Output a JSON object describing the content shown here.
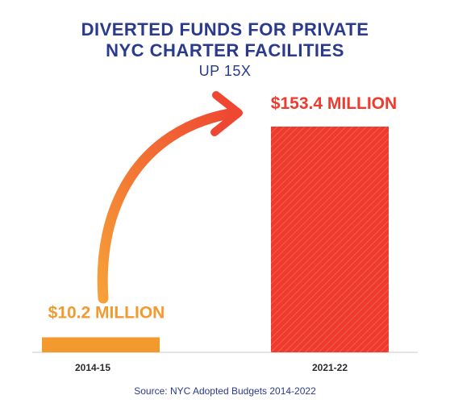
{
  "header": {
    "title_line1": "DIVERTED FUNDS FOR PRIVATE",
    "title_line2": "NYC CHARTER FACILITIES",
    "subtitle": "UP 15X"
  },
  "footer": {
    "source": "Source: NYC Adopted Budgets 2014-2022"
  },
  "colors": {
    "title": "#2a3a8c",
    "bar_2014": "#f39a2f",
    "bar_2022": "#ef3a2d",
    "arrow_start": "#f6a037",
    "arrow_end": "#ef4732",
    "axis": "#c9c9c9"
  },
  "chart_data": {
    "type": "bar",
    "title": "DIVERTED FUNDS FOR PRIVATE NYC CHARTER FACILITIES",
    "subtitle": "UP 15X",
    "categories": [
      "2014-15",
      "2021-22"
    ],
    "values": [
      10.2,
      153.4
    ],
    "data_labels": [
      "$10.2 MILLION",
      "$153.4 MILLION"
    ],
    "ylim": [
      0,
      160
    ],
    "grid": false,
    "xlabel": "",
    "ylabel": "",
    "annotation": "arrow from 2014-15 value to 2021-22 value"
  }
}
